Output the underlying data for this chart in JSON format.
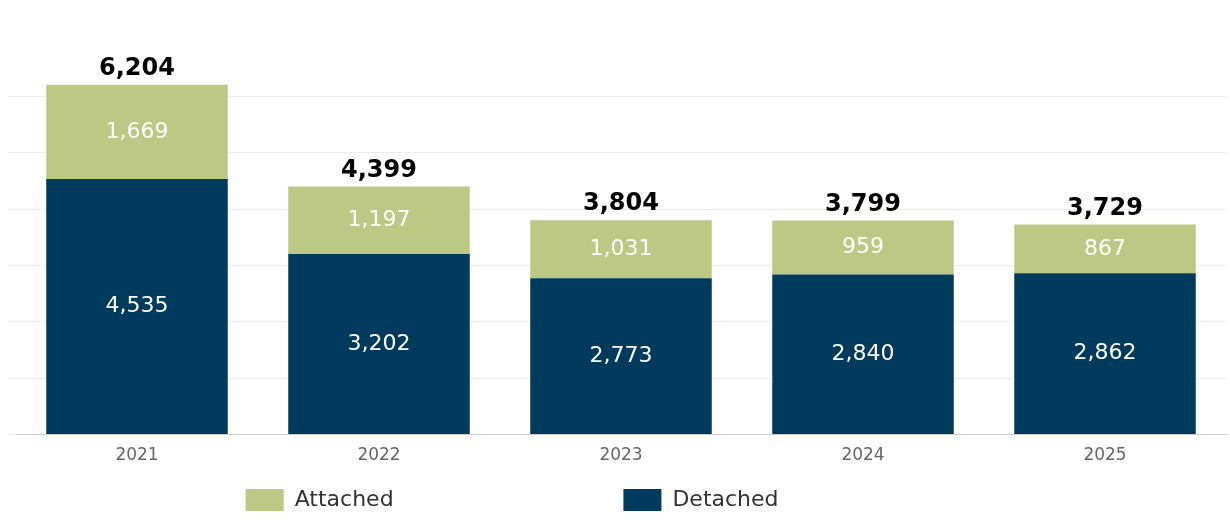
{
  "chart_data": {
    "type": "bar",
    "stacked": true,
    "categories": [
      "2021",
      "2022",
      "2023",
      "2024",
      "2025"
    ],
    "series": [
      {
        "name": "Detached",
        "color": "#003a5c",
        "values": [
          4535,
          3202,
          2773,
          2840,
          2862
        ],
        "value_labels": [
          "4,535",
          "3,202",
          "2,773",
          "2,840",
          "2,862"
        ]
      },
      {
        "name": "Attached",
        "color": "#bcc984",
        "values": [
          1669,
          1197,
          1031,
          959,
          867
        ],
        "value_labels": [
          "1,669",
          "1,197",
          "1,031",
          "959",
          "867"
        ]
      }
    ],
    "totals": [
      "6,204",
      "4,399",
      "3,804",
      "3,799",
      "3,729"
    ],
    "grid": "y",
    "legend": "bottom",
    "tick_labels": "x",
    "yticks": [
      {
        "value": 0,
        "label": null
      },
      {
        "value": 1000,
        "label": null
      },
      {
        "value": 2000,
        "label": null
      },
      {
        "value": 3000,
        "label": null
      },
      {
        "value": 4000,
        "label": null
      },
      {
        "value": 5000,
        "label": null
      },
      {
        "value": 6000,
        "label": null
      }
    ]
  }
}
